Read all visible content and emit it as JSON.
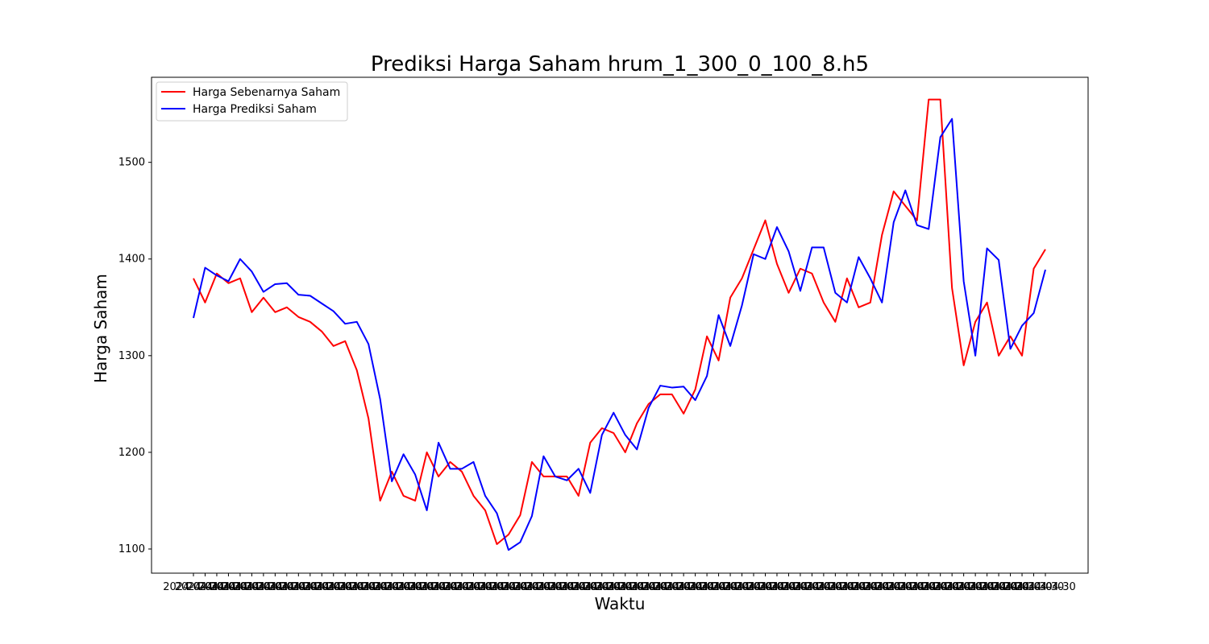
{
  "chart_data": {
    "type": "line",
    "title": "Prediksi Harga Saham hrum_1_300_0_100_8.h5",
    "xlabel": "Waktu",
    "ylabel": "Harga Saham",
    "ylim": [
      1075,
      1588
    ],
    "yticks": [
      1100,
      1200,
      1300,
      1400,
      1500
    ],
    "x_tick_text": "2024-04-30",
    "legend_position": "upper-left",
    "grid": false,
    "series": [
      {
        "name": "Harga Sebenarnya Saham",
        "color": "#ff0000",
        "values": [
          1380,
          1355,
          1385,
          1375,
          1380,
          1345,
          1360,
          1345,
          1350,
          1340,
          1335,
          1325,
          1310,
          1315,
          1285,
          1235,
          1150,
          1180,
          1155,
          1150,
          1200,
          1175,
          1190,
          1180,
          1155,
          1140,
          1105,
          1115,
          1135,
          1190,
          1175,
          1175,
          1175,
          1155,
          1210,
          1225,
          1220,
          1200,
          1230,
          1250,
          1260,
          1260,
          1240,
          1265,
          1320,
          1295,
          1360,
          1380,
          1410,
          1440,
          1395,
          1365,
          1390,
          1385,
          1355,
          1335,
          1380,
          1350,
          1355,
          1425,
          1470,
          1455,
          1440,
          1565,
          1565,
          1370,
          1290,
          1335,
          1355,
          1300,
          1320,
          1300,
          1390,
          1410
        ]
      },
      {
        "name": "Harga Prediksi Saham",
        "color": "#0000ff",
        "values": [
          1339,
          1391,
          1383,
          1377,
          1400,
          1387,
          1366,
          1374,
          1375,
          1363,
          1362,
          1354,
          1346,
          1333,
          1335,
          1312,
          1255,
          1170,
          1198,
          1177,
          1140,
          1210,
          1183,
          1183,
          1190,
          1155,
          1137,
          1099,
          1107,
          1134,
          1196,
          1175,
          1171,
          1183,
          1158,
          1218,
          1241,
          1218,
          1203,
          1246,
          1269,
          1267,
          1268,
          1254,
          1279,
          1342,
          1310,
          1352,
          1405,
          1400,
          1433,
          1408,
          1367,
          1412,
          1412,
          1365,
          1355,
          1402,
          1380,
          1355,
          1438,
          1471,
          1435,
          1431,
          1526,
          1545,
          1377,
          1300,
          1411,
          1399,
          1307,
          1331,
          1344,
          1389
        ]
      }
    ]
  }
}
